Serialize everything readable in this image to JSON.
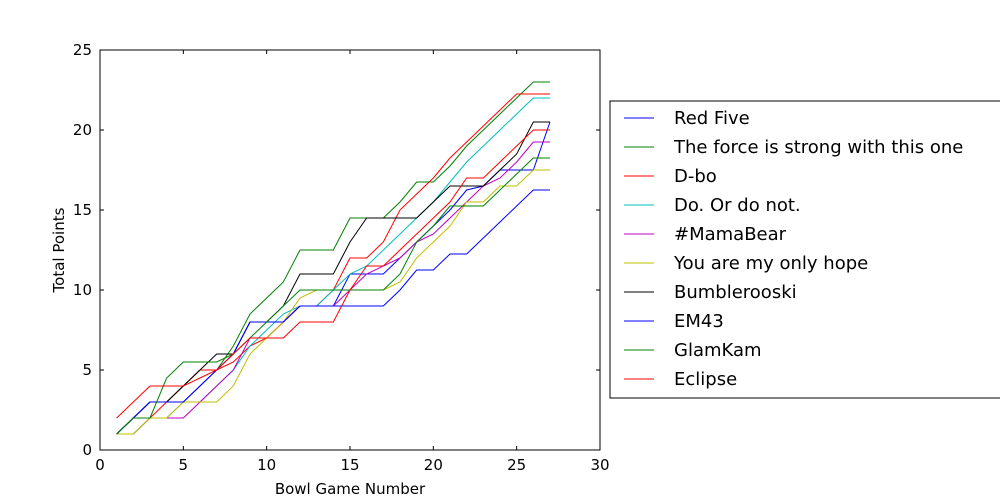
{
  "chart_data": {
    "type": "line",
    "xlabel": "Bowl Game Number",
    "ylabel": "Total Points",
    "xlim": [
      0,
      30
    ],
    "ylim": [
      0,
      25
    ],
    "xticks": [
      0,
      5,
      10,
      15,
      20,
      25,
      30
    ],
    "yticks": [
      0,
      5,
      10,
      15,
      20,
      25
    ],
    "grid": false,
    "legend_position": "right",
    "x": [
      1,
      2,
      3,
      4,
      5,
      6,
      7,
      8,
      9,
      10,
      11,
      12,
      13,
      14,
      15,
      16,
      17,
      18,
      19,
      20,
      21,
      22,
      23,
      24,
      25,
      26,
      27
    ],
    "series": [
      {
        "name": "Red Five",
        "color": "#0000ff",
        "values": [
          1,
          2,
          3,
          3,
          3,
          4,
          5,
          6,
          8,
          8,
          8,
          9,
          9,
          9,
          11,
          11,
          11,
          12,
          13,
          14,
          15,
          16.25,
          16.5,
          17.5,
          17.5,
          17.5,
          20.5
        ]
      },
      {
        "name": "The force is strong with this one",
        "color": "#008000",
        "values": [
          1,
          2,
          3,
          3,
          4,
          5,
          5,
          6.5,
          8.5,
          9.5,
          10.5,
          12.5,
          12.5,
          12.5,
          14.5,
          14.5,
          14.5,
          15.5,
          16.75,
          16.75,
          17.75,
          19,
          20,
          21,
          22,
          23,
          23
        ]
      },
      {
        "name": "D-bo",
        "color": "#ff0000",
        "values": [
          1,
          2,
          2,
          3,
          4,
          5,
          5,
          5.5,
          6.5,
          7,
          8,
          9,
          9,
          10,
          12,
          12,
          13,
          15,
          16,
          17,
          18.25,
          19.25,
          20.25,
          21.25,
          22.25,
          22.25,
          22.25
        ]
      },
      {
        "name": "Do. Or do not.",
        "color": "#00bfbf",
        "values": [
          1,
          1,
          2,
          2,
          3,
          3,
          4,
          5,
          6.5,
          7.5,
          8.5,
          9,
          9,
          10,
          11,
          11.5,
          12.5,
          13.5,
          14.5,
          15.5,
          16.75,
          18,
          19,
          20,
          21,
          22,
          22
        ]
      },
      {
        "name": "#MamaBear",
        "color": "#bf00bf",
        "values": [
          1,
          1,
          2,
          2,
          2,
          3,
          4,
          5,
          7,
          7,
          8,
          9,
          9,
          9,
          10,
          11,
          11.5,
          12,
          13,
          13.5,
          14.5,
          15.5,
          16.5,
          17,
          18,
          19.25,
          19.25
        ]
      },
      {
        "name": "You are my only hope",
        "color": "#bfbf00",
        "values": [
          1,
          1,
          2,
          2,
          3,
          3,
          3,
          4,
          6,
          7,
          8,
          9.5,
          10,
          10,
          10,
          10,
          10,
          10.5,
          12,
          13,
          14,
          15.5,
          15.5,
          16.5,
          16.5,
          17.5,
          17.5
        ]
      },
      {
        "name": "Bumblerooski",
        "color": "#000000",
        "values": [
          1,
          2,
          3,
          3,
          4,
          5,
          6,
          6,
          8,
          8,
          9,
          11,
          11,
          11,
          13,
          14.5,
          14.5,
          14.5,
          14.5,
          15.5,
          16.5,
          16.5,
          16.5,
          17.5,
          18.5,
          20.5,
          20.5
        ]
      },
      {
        "name": "EM43",
        "color": "#0000ff",
        "values": [
          1,
          2,
          3,
          3,
          3,
          4,
          5,
          6,
          8,
          8,
          8,
          9,
          9,
          9,
          9,
          9,
          9,
          10,
          11.25,
          11.25,
          12.25,
          12.25,
          13.25,
          14.25,
          15.25,
          16.25,
          16.25
        ]
      },
      {
        "name": "GlamKam",
        "color": "#008000",
        "values": [
          1,
          2,
          2,
          4.5,
          5.5,
          5.5,
          5.5,
          6,
          7,
          8,
          9,
          10,
          10,
          10,
          10,
          10,
          10,
          11,
          13,
          14,
          15.25,
          15.25,
          15.25,
          16.25,
          17.25,
          18.25,
          18.25
        ]
      },
      {
        "name": "Eclipse",
        "color": "#ff0000",
        "values": [
          2,
          3,
          4,
          4,
          4,
          4.5,
          5,
          6,
          7,
          7,
          7,
          8,
          8,
          8,
          10,
          11.5,
          11.5,
          12.5,
          13.5,
          14.5,
          15.5,
          17,
          17,
          18,
          19,
          20,
          20
        ]
      }
    ]
  }
}
